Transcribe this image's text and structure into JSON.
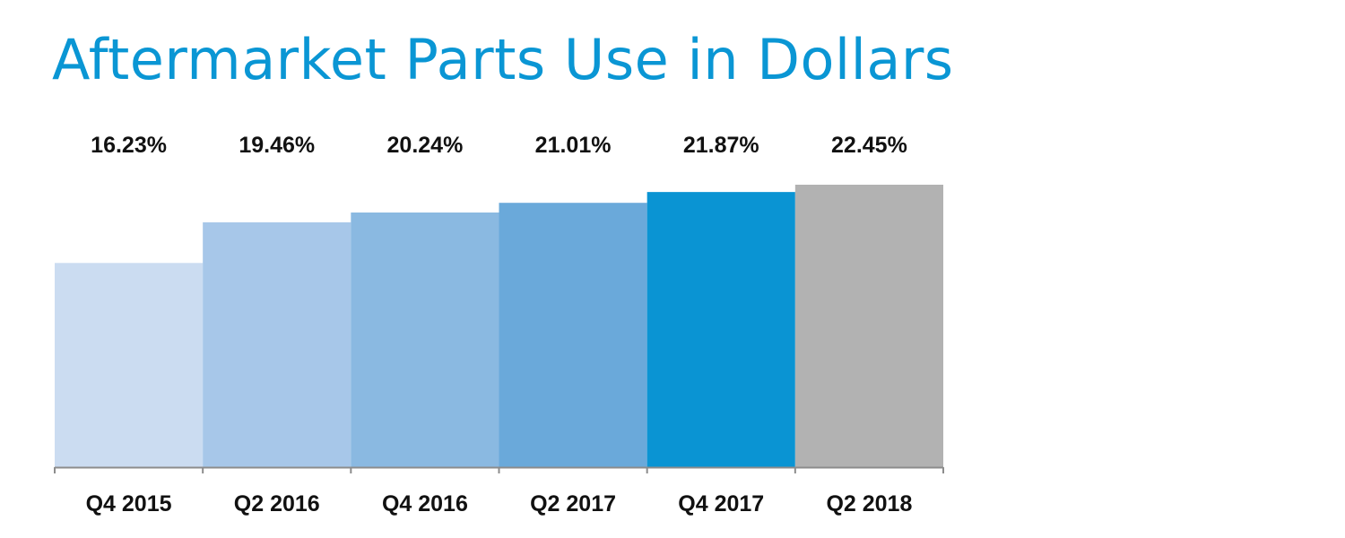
{
  "colors": {
    "title": "#0a96d4",
    "axis": "#8c8c8c",
    "label": "#111111"
  },
  "chart_data": {
    "type": "bar",
    "title": "Aftermarket Parts Use in Dollars",
    "xlabel": "",
    "ylabel": "",
    "categories": [
      "Q4 2015",
      "Q2 2016",
      "Q4 2016",
      "Q2 2017",
      "Q4 2017",
      "Q2 2018"
    ],
    "values": [
      16.23,
      19.46,
      20.24,
      21.01,
      21.87,
      22.45
    ],
    "value_labels": [
      "16.23%",
      "19.46%",
      "20.24%",
      "21.01%",
      "21.87%",
      "22.45%"
    ],
    "bar_colors": [
      "#cbdcf1",
      "#a7c7e9",
      "#8ab9e1",
      "#6aa9da",
      "#0a94d3",
      "#b2b2b2"
    ],
    "ylim": [
      0,
      22.45
    ],
    "grid": false,
    "legend": "none",
    "y_axis_visible": false
  }
}
